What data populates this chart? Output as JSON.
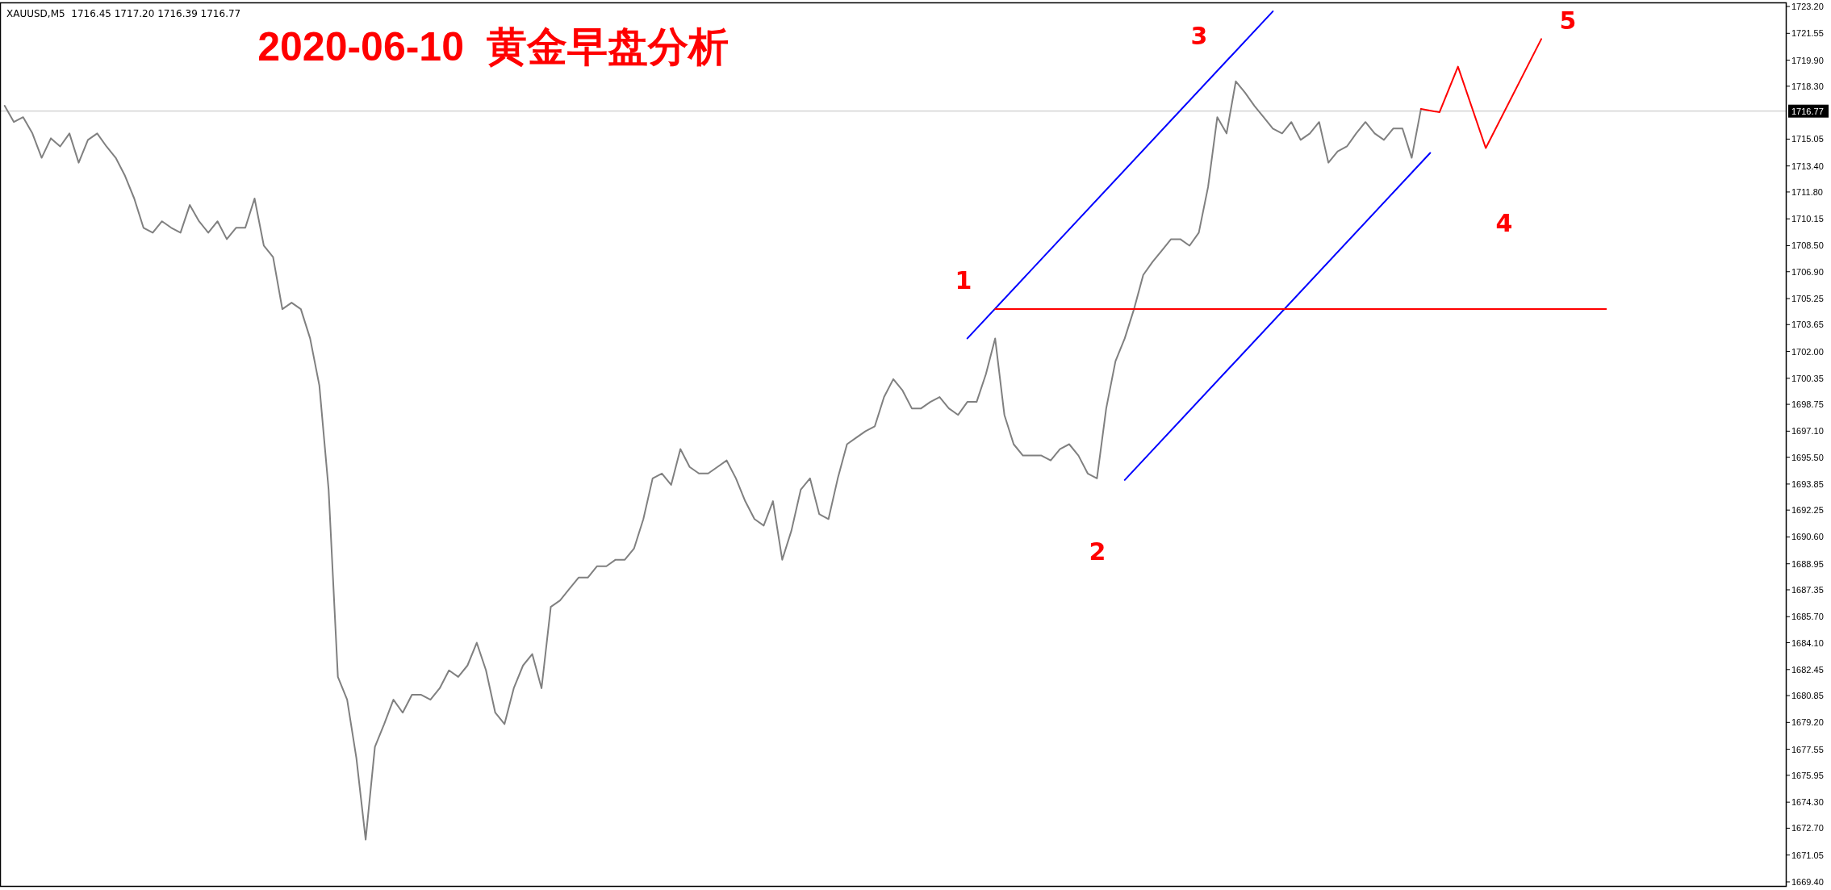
{
  "chart_data": {
    "type": "line",
    "title": "2020-06-10  黄金早盘分析",
    "annotations": [
      "XAUUSD,M5  1716.45 1717.20 1716.39 1716.77",
      "1",
      "2",
      "3",
      "4",
      "5"
    ],
    "categories": [
      null,
      null,
      null,
      null,
      null,
      null,
      null,
      null,
      null,
      null,
      null,
      null,
      null,
      null,
      null,
      null,
      null,
      null,
      null,
      null,
      null,
      null,
      null,
      null,
      null,
      null,
      null,
      null,
      null,
      null,
      null,
      null,
      null,
      null,
      null,
      null,
      null,
      null,
      null,
      null,
      null,
      null,
      null,
      null,
      null,
      null,
      null,
      null,
      null,
      null,
      null,
      null,
      null,
      null,
      null,
      null,
      null,
      null,
      null,
      null,
      null,
      null,
      null,
      null,
      null,
      null,
      null,
      null,
      null,
      null,
      null,
      null,
      null,
      null,
      null,
      null,
      null,
      null,
      null,
      null,
      null,
      null,
      null,
      null,
      null,
      null,
      null,
      null,
      null,
      null,
      null,
      null,
      null,
      null,
      null,
      null,
      null,
      null,
      null,
      null,
      null,
      null,
      null,
      null,
      null,
      null,
      null,
      null,
      null,
      null,
      null,
      null,
      null,
      null,
      null,
      null,
      null,
      null,
      null,
      null,
      null,
      null,
      null,
      null,
      null,
      null,
      null,
      null,
      null,
      null,
      null,
      null,
      null,
      null,
      null,
      null,
      null,
      null,
      null,
      null,
      null,
      null,
      null,
      null,
      null,
      null,
      null,
      null,
      null,
      null,
      null,
      null,
      null,
      null,
      null,
      null,
      null,
      null,
      null,
      null,
      null,
      null,
      null,
      null,
      null,
      null,
      null,
      null,
      null,
      null,
      null,
      null,
      null,
      null,
      null,
      null,
      null,
      null,
      null,
      null,
      null,
      null,
      null,
      null,
      null,
      null,
      null,
      null,
      null,
      null,
      null,
      null,
      null
    ],
    "series": [
      {
        "color": "#808080",
        "values": [
          1717.1,
          1716.1,
          1716.4,
          1715.4,
          1713.9,
          1715.1,
          1714.6,
          1715.4,
          1713.6,
          1715.0,
          1715.4,
          1714.6,
          1713.9,
          1712.8,
          1711.4,
          1709.6,
          1709.3,
          1710.0,
          1709.6,
          1709.3,
          1711.0,
          1710.0,
          1709.3,
          1710.0,
          1708.9,
          1709.6,
          1709.6,
          1711.4,
          1708.5,
          1707.8,
          1704.6,
          1705.0,
          1704.6,
          1702.8,
          1699.9,
          1693.5,
          1682.0,
          1680.6,
          1677.0,
          1672.0,
          1677.7,
          1679.1,
          1680.6,
          1679.8,
          1680.9,
          1680.9,
          1680.6,
          1681.3,
          1682.4,
          1682.0,
          1682.7,
          1684.1,
          1682.4,
          1679.8,
          1679.1,
          1681.3,
          1682.7,
          1683.4,
          1681.3,
          1686.3,
          1686.7,
          1687.4,
          1688.1,
          1688.1,
          1688.8,
          1688.8,
          1689.2,
          1689.2,
          1689.9,
          1691.7,
          1694.2,
          1694.5,
          1693.8,
          1696.0,
          1694.9,
          1694.5,
          1694.5,
          1694.9,
          1695.3,
          1694.2,
          1692.8,
          1691.7,
          1691.3,
          1692.8,
          1689.2,
          1691.0,
          1693.5,
          1694.2,
          1692.0,
          1691.7,
          1694.2,
          1696.3,
          1696.7,
          1697.1,
          1697.4,
          1699.2,
          1700.3,
          1699.6,
          1698.5,
          1698.5,
          1698.9,
          1699.2,
          1698.5,
          1698.1,
          1698.9,
          1698.9,
          1700.6,
          1702.8,
          1698.1,
          1696.3,
          1695.6,
          1695.6,
          1695.6,
          1695.3,
          1696.0,
          1696.3,
          1695.6,
          1694.5,
          1694.2,
          1698.5,
          1701.4,
          1702.8,
          1704.6,
          1706.7,
          1707.5,
          1708.2,
          1708.9,
          1708.9,
          1708.5,
          1709.3,
          1712.1,
          1716.4,
          1715.4,
          1718.6,
          1717.9,
          1717.1,
          1716.4,
          1715.7,
          1715.4,
          1716.1,
          1715.0,
          1715.4,
          1716.1,
          1713.6,
          1714.3,
          1714.6,
          1715.4,
          1716.1,
          1715.4,
          1715.0,
          1715.7,
          1715.7,
          1713.9,
          1716.9,
          null,
          null,
          null,
          null,
          null,
          null,
          null,
          null,
          null,
          null,
          null,
          null,
          null,
          null,
          null,
          null,
          null,
          null,
          null,
          null,
          null,
          null,
          null,
          null,
          null,
          null,
          null,
          null,
          null,
          null,
          null,
          null,
          null,
          null,
          null,
          null,
          null,
          null,
          null
        ]
      },
      {
        "color": "#0000ff",
        "values": [
          null,
          null,
          null,
          null,
          null,
          null,
          null,
          null,
          null,
          null,
          null,
          null,
          null,
          null,
          null,
          null,
          null,
          null,
          null,
          null,
          null,
          null,
          null,
          null,
          null,
          null,
          null,
          null,
          null,
          null,
          null,
          null,
          null,
          null,
          null,
          null,
          null,
          null,
          null,
          null,
          null,
          null,
          null,
          null,
          null,
          null,
          null,
          null,
          null,
          null,
          null,
          null,
          null,
          null,
          null,
          null,
          null,
          null,
          null,
          null,
          null,
          null,
          null,
          null,
          null,
          null,
          null,
          null,
          null,
          null,
          null,
          null,
          null,
          null,
          null,
          null,
          null,
          null,
          null,
          null,
          null,
          null,
          null,
          null,
          null,
          null,
          null,
          null,
          null,
          null,
          null,
          null,
          null,
          null,
          null,
          null,
          null,
          null,
          null,
          null,
          null,
          null,
          null,
          null,
          1702.8,
          null,
          null,
          null,
          null,
          null,
          null,
          null,
          null,
          null,
          null,
          null,
          null,
          null,
          null,
          null,
          null,
          null,
          null,
          null,
          null,
          null,
          null,
          null,
          null,
          null,
          null,
          null,
          null,
          null,
          null,
          null,
          null,
          1722.9,
          null,
          null,
          null,
          null,
          null,
          null,
          null,
          null,
          null,
          null,
          null,
          null,
          null,
          null,
          null,
          null,
          null,
          null,
          null,
          null,
          null,
          null,
          null,
          null,
          null,
          null,
          null,
          null,
          null,
          null,
          null,
          null,
          null,
          null,
          null,
          null,
          null,
          null,
          null,
          null,
          null,
          null,
          null,
          null,
          null,
          null,
          null,
          null,
          null,
          null,
          null,
          null,
          null,
          null,
          null
        ]
      },
      {
        "color": "#0000ff",
        "values": [
          null,
          null,
          null,
          null,
          null,
          null,
          null,
          null,
          null,
          null,
          null,
          null,
          null,
          null,
          null,
          null,
          null,
          null,
          null,
          null,
          null,
          null,
          null,
          null,
          null,
          null,
          null,
          null,
          null,
          null,
          null,
          null,
          null,
          null,
          null,
          null,
          null,
          null,
          null,
          null,
          null,
          null,
          null,
          null,
          null,
          null,
          null,
          null,
          null,
          null,
          null,
          null,
          null,
          null,
          null,
          null,
          null,
          null,
          null,
          null,
          null,
          null,
          null,
          null,
          null,
          null,
          null,
          null,
          null,
          null,
          null,
          null,
          null,
          null,
          null,
          null,
          null,
          null,
          null,
          null,
          null,
          null,
          null,
          null,
          null,
          null,
          null,
          null,
          null,
          null,
          null,
          null,
          null,
          null,
          null,
          null,
          null,
          null,
          null,
          null,
          null,
          null,
          null,
          null,
          null,
          null,
          null,
          null,
          null,
          null,
          null,
          null,
          null,
          null,
          null,
          null,
          null,
          null,
          null,
          null,
          null,
          1694.1,
          null,
          null,
          null,
          null,
          null,
          null,
          null,
          null,
          null,
          null,
          null,
          null,
          null,
          null,
          null,
          null,
          null,
          null,
          null,
          null,
          null,
          null,
          null,
          null,
          null,
          null,
          null,
          null,
          null,
          null,
          null,
          null,
          1714.2,
          null,
          null,
          null,
          null,
          null,
          null,
          null,
          null,
          null,
          null,
          null,
          null,
          null,
          null,
          null,
          null,
          null,
          null,
          null,
          null,
          null,
          null,
          null,
          null,
          null,
          null,
          null,
          null,
          null,
          null,
          null,
          null,
          null,
          null,
          null,
          null,
          null,
          null
        ]
      },
      {
        "color": "#ff0000",
        "values": [
          null,
          null,
          null,
          null,
          null,
          null,
          null,
          null,
          null,
          null,
          null,
          null,
          null,
          null,
          null,
          null,
          null,
          null,
          null,
          null,
          null,
          null,
          null,
          null,
          null,
          null,
          null,
          null,
          null,
          null,
          null,
          null,
          null,
          null,
          null,
          null,
          null,
          null,
          null,
          null,
          null,
          null,
          null,
          null,
          null,
          null,
          null,
          null,
          null,
          null,
          null,
          null,
          null,
          null,
          null,
          null,
          null,
          null,
          null,
          null,
          null,
          null,
          null,
          null,
          null,
          null,
          null,
          null,
          null,
          null,
          null,
          null,
          null,
          null,
          null,
          null,
          null,
          null,
          null,
          null,
          null,
          null,
          null,
          null,
          null,
          null,
          null,
          null,
          null,
          null,
          null,
          null,
          null,
          null,
          null,
          null,
          null,
          null,
          null,
          null,
          null,
          null,
          null,
          null,
          null,
          null,
          null,
          1704.6,
          null,
          null,
          null,
          null,
          null,
          null,
          null,
          null,
          null,
          null,
          null,
          null,
          null,
          null,
          null,
          null,
          null,
          null,
          null,
          null,
          null,
          null,
          null,
          null,
          null,
          null,
          null,
          null,
          null,
          null,
          null,
          null,
          null,
          null,
          null,
          null,
          null,
          null,
          null,
          null,
          null,
          null,
          null,
          null,
          null,
          null,
          null,
          null,
          null,
          null,
          null,
          null,
          null,
          null,
          null,
          null,
          null,
          null,
          null,
          null,
          null,
          null,
          null,
          null,
          null,
          1704.6,
          null,
          null,
          null,
          null,
          null,
          null,
          null,
          null,
          null,
          null,
          null,
          null,
          null,
          null,
          null,
          null,
          null,
          null,
          null
        ]
      },
      {
        "color": "#ff0000",
        "values": [
          null,
          null,
          null,
          null,
          null,
          null,
          null,
          null,
          null,
          null,
          null,
          null,
          null,
          null,
          null,
          null,
          null,
          null,
          null,
          null,
          null,
          null,
          null,
          null,
          null,
          null,
          null,
          null,
          null,
          null,
          null,
          null,
          null,
          null,
          null,
          null,
          null,
          null,
          null,
          null,
          null,
          null,
          null,
          null,
          null,
          null,
          null,
          null,
          null,
          null,
          null,
          null,
          null,
          null,
          null,
          null,
          null,
          null,
          null,
          null,
          null,
          null,
          null,
          null,
          null,
          null,
          null,
          null,
          null,
          null,
          null,
          null,
          null,
          null,
          null,
          null,
          null,
          null,
          null,
          null,
          null,
          null,
          null,
          null,
          null,
          null,
          null,
          null,
          null,
          null,
          null,
          null,
          null,
          null,
          null,
          null,
          null,
          null,
          null,
          null,
          null,
          null,
          null,
          null,
          null,
          null,
          null,
          null,
          null,
          null,
          null,
          null,
          null,
          null,
          null,
          null,
          null,
          null,
          null,
          null,
          null,
          null,
          null,
          null,
          null,
          null,
          null,
          null,
          null,
          null,
          null,
          null,
          null,
          null,
          null,
          null,
          null,
          null,
          null,
          null,
          null,
          null,
          null,
          null,
          null,
          null,
          null,
          null,
          null,
          null,
          null,
          null,
          null,
          1716.9,
          null,
          1716.7,
          null,
          1719.5,
          null,
          null,
          1714.5,
          null,
          null,
          null,
          null,
          null,
          1721.2,
          null,
          null,
          null,
          null,
          null,
          null,
          null,
          null,
          null,
          null,
          null,
          null,
          null,
          null,
          null,
          null,
          null,
          null,
          null,
          null,
          null,
          null,
          null,
          null,
          null,
          null
        ]
      }
    ],
    "ylim": [
      1669.15,
      1723.45
    ],
    "yticks": [
      {
        "value": 1723.2,
        "label": "1723.20"
      },
      1721.55,
      {
        "value": 1719.9,
        "label": "1719.90"
      },
      {
        "value": 1718.3,
        "label": "1718.30"
      },
      1715.05,
      {
        "value": 1713.4,
        "label": "1713.40"
      },
      {
        "value": 1711.8,
        "label": "1711.80"
      },
      1710.15,
      {
        "value": 1708.5,
        "label": "1708.50"
      },
      {
        "value": 1706.9,
        "label": "1706.90"
      },
      1705.25,
      1703.65,
      {
        "value": 1702,
        "label": "1702.00"
      },
      1700.35,
      1698.75,
      {
        "value": 1697.1,
        "label": "1697.10"
      },
      {
        "value": 1695.5,
        "label": "1695.50"
      },
      1693.85,
      1692.25,
      {
        "value": 1690.6,
        "label": "1690.60"
      },
      1688.95,
      1687.35,
      {
        "value": 1685.7,
        "label": "1685.70"
      },
      {
        "value": 1684.1,
        "label": "1684.10"
      },
      1682.45,
      1680.85,
      {
        "value": 1679.2,
        "label": "1679.20"
      },
      1677.55,
      1675.95,
      {
        "value": 1674.3,
        "label": "1674.30"
      },
      {
        "value": 1672.7,
        "label": "1672.70"
      },
      1671.05,
      {
        "value": 1669.4,
        "label": "1669.40"
      }
    ],
    "ref_lines": [
      {
        "axis": "y",
        "value": 1716.77,
        "label": "1716.77",
        "color": "#c0c0c0"
      }
    ],
    "tick_labels": "y"
  }
}
